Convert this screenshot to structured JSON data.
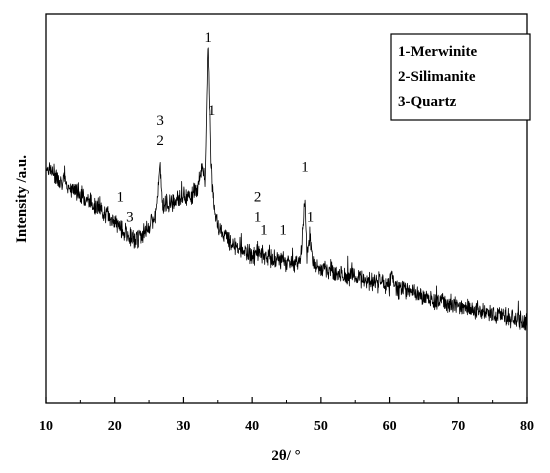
{
  "chart_data": {
    "type": "line",
    "xlabel": "2θ/ °",
    "ylabel": "Intensity /a.u.",
    "xlim": [
      10,
      80
    ],
    "xticks": [
      "10",
      "20",
      "30",
      "40",
      "50",
      "60",
      "70",
      "80"
    ],
    "grid": false,
    "legend_position": "top-right",
    "legend": [
      "1-Merwinite",
      "2-Silimanite",
      "3-Quartz"
    ],
    "line_color": "#000000",
    "series": [
      {
        "values_note": "",
        "x": [
          10,
          12,
          14,
          16,
          18,
          20,
          21,
          22,
          23,
          24,
          25,
          26,
          26.6,
          27,
          28,
          29,
          30,
          31,
          32,
          32.7,
          33.2,
          33.6,
          34,
          34.5,
          35,
          36,
          37,
          38,
          39,
          40,
          41,
          42,
          43,
          44,
          45,
          46,
          47,
          47.7,
          48,
          48.4,
          49,
          50,
          52,
          54,
          56,
          58,
          60,
          60.3,
          61,
          62,
          64,
          66,
          68,
          70,
          72,
          74,
          76,
          78,
          80
        ],
        "y": [
          0.62,
          0.58,
          0.55,
          0.52,
          0.49,
          0.45,
          0.43,
          0.41,
          0.4,
          0.41,
          0.44,
          0.47,
          0.62,
          0.5,
          0.51,
          0.52,
          0.53,
          0.53,
          0.55,
          0.62,
          0.58,
          1.0,
          0.62,
          0.48,
          0.44,
          0.41,
          0.39,
          0.37,
          0.36,
          0.35,
          0.36,
          0.35,
          0.34,
          0.34,
          0.33,
          0.33,
          0.33,
          0.52,
          0.34,
          0.42,
          0.32,
          0.31,
          0.3,
          0.29,
          0.28,
          0.27,
          0.26,
          0.3,
          0.25,
          0.25,
          0.23,
          0.22,
          0.21,
          0.2,
          0.19,
          0.18,
          0.17,
          0.16,
          0.15
        ]
      }
    ],
    "annotations": [
      {
        "text": "1",
        "x": 33.6,
        "y": 1.0
      },
      {
        "text": "1",
        "x": 34.1,
        "y": 0.78
      },
      {
        "text": "3",
        "x": 26.6,
        "y": 0.75
      },
      {
        "text": "2",
        "x": 26.6,
        "y": 0.69
      },
      {
        "text": "1",
        "x": 20.8,
        "y": 0.52
      },
      {
        "text": "3",
        "x": 22.2,
        "y": 0.46
      },
      {
        "text": "2",
        "x": 40.8,
        "y": 0.52
      },
      {
        "text": "1",
        "x": 40.8,
        "y": 0.46
      },
      {
        "text": "1",
        "x": 41.7,
        "y": 0.42
      },
      {
        "text": "1",
        "x": 44.5,
        "y": 0.42
      },
      {
        "text": "1",
        "x": 47.7,
        "y": 0.61
      },
      {
        "text": "1",
        "x": 48.5,
        "y": 0.46
      }
    ]
  }
}
